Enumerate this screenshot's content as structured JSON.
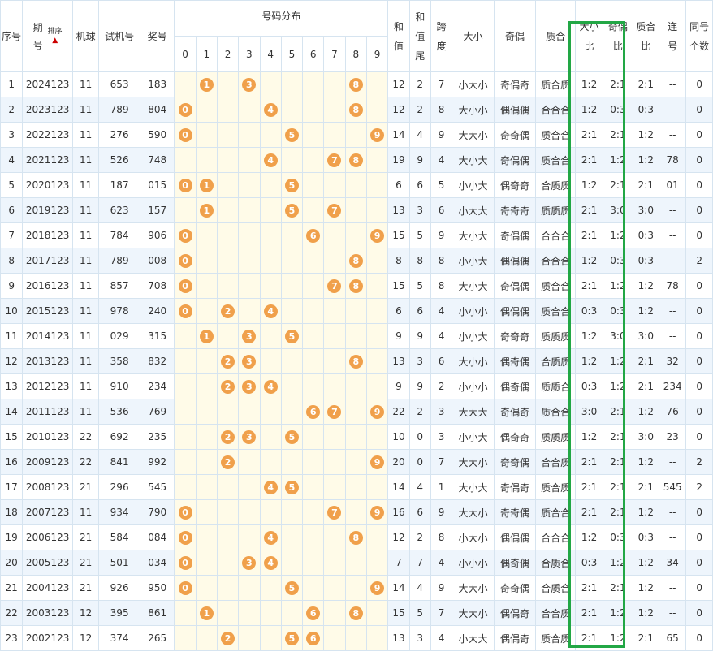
{
  "headers": {
    "seq": "序号",
    "period_line1": "期",
    "period_line2": "号",
    "sort_label": "排序",
    "sort_arrow": "▲",
    "machine": "机球",
    "test": "试机号",
    "prize": "奖号",
    "dist": "号码分布",
    "digits": [
      "0",
      "1",
      "2",
      "3",
      "4",
      "5",
      "6",
      "7",
      "8",
      "9"
    ],
    "sum_line1": "和",
    "sum_line2": "值",
    "sumtail_line1": "和",
    "sumtail_line2": "值",
    "sumtail_line3": "尾",
    "span_line1": "跨",
    "span_line2": "度",
    "size": "大小",
    "oddeven": "奇偶",
    "primecomp": "质合",
    "size_ratio_line1": "大小",
    "size_ratio_line2": "比",
    "oe_ratio_line1": "奇偶",
    "oe_ratio_line2": "比",
    "pc_ratio_line1": "质合",
    "pc_ratio_line2": "比",
    "consec_line1": "连",
    "consec_line2": "号",
    "same_line1": "同号",
    "same_line2": "个数"
  },
  "rows": [
    {
      "seq": "1",
      "period": "2024123",
      "machine": "11",
      "test": "653",
      "prize": "183",
      "balls": [
        1,
        3,
        8
      ],
      "sum": "12",
      "tail": "2",
      "span": "7",
      "size": "小大小",
      "oe": "奇偶奇",
      "pc": "质合质",
      "sr": "1:2",
      "oer": "2:1",
      "pcr": "2:1",
      "consec": "--",
      "same": "0"
    },
    {
      "seq": "2",
      "period": "2023123",
      "machine": "11",
      "test": "789",
      "prize": "804",
      "balls": [
        0,
        4,
        8
      ],
      "sum": "12",
      "tail": "2",
      "span": "8",
      "size": "大小小",
      "oe": "偶偶偶",
      "pc": "合合合",
      "sr": "1:2",
      "oer": "0:3",
      "pcr": "0:3",
      "consec": "--",
      "same": "0"
    },
    {
      "seq": "3",
      "period": "2022123",
      "machine": "11",
      "test": "276",
      "prize": "590",
      "balls": [
        0,
        5,
        9
      ],
      "sum": "14",
      "tail": "4",
      "span": "9",
      "size": "大大小",
      "oe": "奇奇偶",
      "pc": "质合合",
      "sr": "2:1",
      "oer": "2:1",
      "pcr": "1:2",
      "consec": "--",
      "same": "0"
    },
    {
      "seq": "4",
      "period": "2021123",
      "machine": "11",
      "test": "526",
      "prize": "748",
      "balls": [
        4,
        7,
        8
      ],
      "sum": "19",
      "tail": "9",
      "span": "4",
      "size": "大小大",
      "oe": "奇偶偶",
      "pc": "质合合",
      "sr": "2:1",
      "oer": "1:2",
      "pcr": "1:2",
      "consec": "78",
      "same": "0"
    },
    {
      "seq": "5",
      "period": "2020123",
      "machine": "11",
      "test": "187",
      "prize": "015",
      "balls": [
        0,
        1,
        5
      ],
      "sum": "6",
      "tail": "6",
      "span": "5",
      "size": "小小大",
      "oe": "偶奇奇",
      "pc": "合质质",
      "sr": "1:2",
      "oer": "2:1",
      "pcr": "2:1",
      "consec": "01",
      "same": "0"
    },
    {
      "seq": "6",
      "period": "2019123",
      "machine": "11",
      "test": "623",
      "prize": "157",
      "balls": [
        1,
        5,
        7
      ],
      "sum": "13",
      "tail": "3",
      "span": "6",
      "size": "小大大",
      "oe": "奇奇奇",
      "pc": "质质质",
      "sr": "2:1",
      "oer": "3:0",
      "pcr": "3:0",
      "consec": "--",
      "same": "0"
    },
    {
      "seq": "7",
      "period": "2018123",
      "machine": "11",
      "test": "784",
      "prize": "906",
      "balls": [
        0,
        6,
        9
      ],
      "sum": "15",
      "tail": "5",
      "span": "9",
      "size": "大小大",
      "oe": "奇偶偶",
      "pc": "合合合",
      "sr": "2:1",
      "oer": "1:2",
      "pcr": "0:3",
      "consec": "--",
      "same": "0"
    },
    {
      "seq": "8",
      "period": "2017123",
      "machine": "11",
      "test": "789",
      "prize": "008",
      "balls": [
        0,
        8
      ],
      "sum": "8",
      "tail": "8",
      "span": "8",
      "size": "小小大",
      "oe": "偶偶偶",
      "pc": "合合合",
      "sr": "1:2",
      "oer": "0:3",
      "pcr": "0:3",
      "consec": "--",
      "same": "2"
    },
    {
      "seq": "9",
      "period": "2016123",
      "machine": "11",
      "test": "857",
      "prize": "708",
      "balls": [
        0,
        7,
        8
      ],
      "sum": "15",
      "tail": "5",
      "span": "8",
      "size": "大小大",
      "oe": "奇偶偶",
      "pc": "质合合",
      "sr": "2:1",
      "oer": "1:2",
      "pcr": "1:2",
      "consec": "78",
      "same": "0"
    },
    {
      "seq": "10",
      "period": "2015123",
      "machine": "11",
      "test": "978",
      "prize": "240",
      "balls": [
        0,
        2,
        4
      ],
      "sum": "6",
      "tail": "6",
      "span": "4",
      "size": "小小小",
      "oe": "偶偶偶",
      "pc": "质合合",
      "sr": "0:3",
      "oer": "0:3",
      "pcr": "1:2",
      "consec": "--",
      "same": "0"
    },
    {
      "seq": "11",
      "period": "2014123",
      "machine": "11",
      "test": "029",
      "prize": "315",
      "balls": [
        1,
        3,
        5
      ],
      "sum": "9",
      "tail": "9",
      "span": "4",
      "size": "小小大",
      "oe": "奇奇奇",
      "pc": "质质质",
      "sr": "1:2",
      "oer": "3:0",
      "pcr": "3:0",
      "consec": "--",
      "same": "0"
    },
    {
      "seq": "12",
      "period": "2013123",
      "machine": "11",
      "test": "358",
      "prize": "832",
      "balls": [
        2,
        3,
        8
      ],
      "sum": "13",
      "tail": "3",
      "span": "6",
      "size": "大小小",
      "oe": "偶奇偶",
      "pc": "合质质",
      "sr": "1:2",
      "oer": "1:2",
      "pcr": "2:1",
      "consec": "32",
      "same": "0"
    },
    {
      "seq": "13",
      "period": "2012123",
      "machine": "11",
      "test": "910",
      "prize": "234",
      "balls": [
        2,
        3,
        4
      ],
      "sum": "9",
      "tail": "9",
      "span": "2",
      "size": "小小小",
      "oe": "偶奇偶",
      "pc": "质质合",
      "sr": "0:3",
      "oer": "1:2",
      "pcr": "2:1",
      "consec": "234",
      "same": "0"
    },
    {
      "seq": "14",
      "period": "2011123",
      "machine": "11",
      "test": "536",
      "prize": "769",
      "balls": [
        6,
        7,
        9
      ],
      "sum": "22",
      "tail": "2",
      "span": "3",
      "size": "大大大",
      "oe": "奇偶奇",
      "pc": "质合合",
      "sr": "3:0",
      "oer": "2:1",
      "pcr": "1:2",
      "consec": "76",
      "same": "0"
    },
    {
      "seq": "15",
      "period": "2010123",
      "machine": "22",
      "test": "692",
      "prize": "235",
      "balls": [
        2,
        3,
        5
      ],
      "sum": "10",
      "tail": "0",
      "span": "3",
      "size": "小小大",
      "oe": "偶奇奇",
      "pc": "质质质",
      "sr": "1:2",
      "oer": "2:1",
      "pcr": "3:0",
      "consec": "23",
      "same": "0"
    },
    {
      "seq": "16",
      "period": "2009123",
      "machine": "22",
      "test": "841",
      "prize": "992",
      "balls": [
        2,
        9
      ],
      "sum": "20",
      "tail": "0",
      "span": "7",
      "size": "大大小",
      "oe": "奇奇偶",
      "pc": "合合质",
      "sr": "2:1",
      "oer": "2:1",
      "pcr": "1:2",
      "consec": "--",
      "same": "2"
    },
    {
      "seq": "17",
      "period": "2008123",
      "machine": "21",
      "test": "296",
      "prize": "545",
      "balls": [
        4,
        5
      ],
      "sum": "14",
      "tail": "4",
      "span": "1",
      "size": "大小大",
      "oe": "奇偶奇",
      "pc": "质合质",
      "sr": "2:1",
      "oer": "2:1",
      "pcr": "2:1",
      "consec": "545",
      "same": "2"
    },
    {
      "seq": "18",
      "period": "2007123",
      "machine": "11",
      "test": "934",
      "prize": "790",
      "balls": [
        0,
        7,
        9
      ],
      "sum": "16",
      "tail": "6",
      "span": "9",
      "size": "大大小",
      "oe": "奇奇偶",
      "pc": "质合合",
      "sr": "2:1",
      "oer": "2:1",
      "pcr": "1:2",
      "consec": "--",
      "same": "0"
    },
    {
      "seq": "19",
      "period": "2006123",
      "machine": "21",
      "test": "584",
      "prize": "084",
      "balls": [
        0,
        4,
        8
      ],
      "sum": "12",
      "tail": "2",
      "span": "8",
      "size": "小大小",
      "oe": "偶偶偶",
      "pc": "合合合",
      "sr": "1:2",
      "oer": "0:3",
      "pcr": "0:3",
      "consec": "--",
      "same": "0"
    },
    {
      "seq": "20",
      "period": "2005123",
      "machine": "21",
      "test": "501",
      "prize": "034",
      "balls": [
        0,
        3,
        4
      ],
      "sum": "7",
      "tail": "7",
      "span": "4",
      "size": "小小小",
      "oe": "偶奇偶",
      "pc": "合质合",
      "sr": "0:3",
      "oer": "1:2",
      "pcr": "1:2",
      "consec": "34",
      "same": "0"
    },
    {
      "seq": "21",
      "period": "2004123",
      "machine": "21",
      "test": "926",
      "prize": "950",
      "balls": [
        0,
        5,
        9
      ],
      "sum": "14",
      "tail": "4",
      "span": "9",
      "size": "大大小",
      "oe": "奇奇偶",
      "pc": "合质合",
      "sr": "2:1",
      "oer": "2:1",
      "pcr": "1:2",
      "consec": "--",
      "same": "0"
    },
    {
      "seq": "22",
      "period": "2003123",
      "machine": "12",
      "test": "395",
      "prize": "861",
      "balls": [
        1,
        6,
        8
      ],
      "sum": "15",
      "tail": "5",
      "span": "7",
      "size": "大大小",
      "oe": "偶偶奇",
      "pc": "合合质",
      "sr": "2:1",
      "oer": "1:2",
      "pcr": "1:2",
      "consec": "--",
      "same": "0"
    },
    {
      "seq": "23",
      "period": "2002123",
      "machine": "12",
      "test": "374",
      "prize": "265",
      "balls": [
        2,
        5,
        6
      ],
      "sum": "13",
      "tail": "3",
      "span": "4",
      "size": "小大大",
      "oe": "偶偶奇",
      "pc": "质合质",
      "sr": "2:1",
      "oer": "1:2",
      "pcr": "2:1",
      "consec": "65",
      "same": "0"
    }
  ],
  "colors": {
    "ball": "#f0a04b",
    "highlight_box": "#22a745",
    "alt_row": "#eef5fc",
    "dist_bg": "#fffbe8"
  }
}
